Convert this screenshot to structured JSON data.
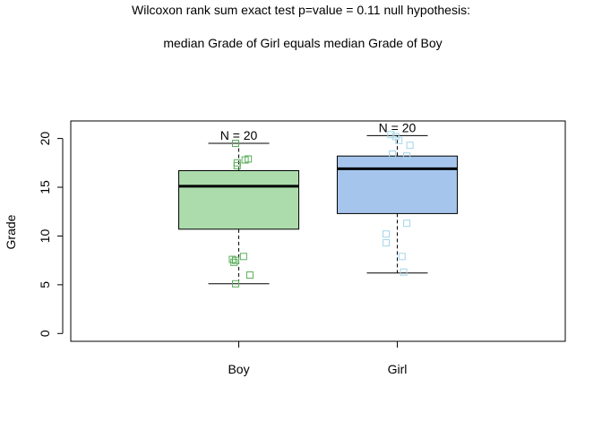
{
  "chart_data": {
    "type": "boxplot",
    "title_line1": "Wilcoxon rank sum exact test  p=value =  0.11  null hypothesis:",
    "title_line2": "median Grade of  Girl equals median Grade of  Boy",
    "xlabel": "",
    "ylabel": "Grade",
    "ylim": [
      -0.8,
      21.8
    ],
    "yticks": [
      0,
      5,
      10,
      15,
      20
    ],
    "categories": [
      "Boy",
      "Girl"
    ],
    "xlim": [
      -0.06,
      3.06
    ],
    "grid": false,
    "legend": "none",
    "boxes": [
      {
        "name": "Boy",
        "n_label": "N = 20",
        "whisker_low": 5.1,
        "q1": 10.7,
        "median": 15.1,
        "q3": 16.7,
        "whisker_high": 19.5,
        "fill": "#addcac",
        "point_color": "#5aae5a",
        "points": [
          {
            "x": 0.98,
            "y": 19.5
          },
          {
            "x": 1.04,
            "y": 17.8
          },
          {
            "x": 1.06,
            "y": 17.9
          },
          {
            "x": 0.99,
            "y": 17.5
          },
          {
            "x": 0.99,
            "y": 17.2
          },
          {
            "x": 0.96,
            "y": 7.6
          },
          {
            "x": 0.97,
            "y": 7.3
          },
          {
            "x": 0.98,
            "y": 7.5
          },
          {
            "x": 1.03,
            "y": 7.9
          },
          {
            "x": 1.07,
            "y": 6.0
          },
          {
            "x": 0.98,
            "y": 5.1
          }
        ]
      },
      {
        "name": "Girl",
        "n_label": "N = 20",
        "whisker_low": 6.2,
        "q1": 12.3,
        "median": 16.9,
        "q3": 18.2,
        "whisker_high": 20.3,
        "fill": "#a5c5ec",
        "point_color": "#a3d4ea",
        "points": [
          {
            "x": 1.96,
            "y": 20.4
          },
          {
            "x": 1.99,
            "y": 20.2
          },
          {
            "x": 2.01,
            "y": 19.8
          },
          {
            "x": 2.08,
            "y": 19.3
          },
          {
            "x": 1.97,
            "y": 18.4
          },
          {
            "x": 2.06,
            "y": 18.2
          },
          {
            "x": 2.06,
            "y": 11.3
          },
          {
            "x": 1.93,
            "y": 10.2
          },
          {
            "x": 1.93,
            "y": 9.3
          },
          {
            "x": 2.03,
            "y": 7.9
          },
          {
            "x": 2.04,
            "y": 6.3
          }
        ]
      }
    ]
  }
}
